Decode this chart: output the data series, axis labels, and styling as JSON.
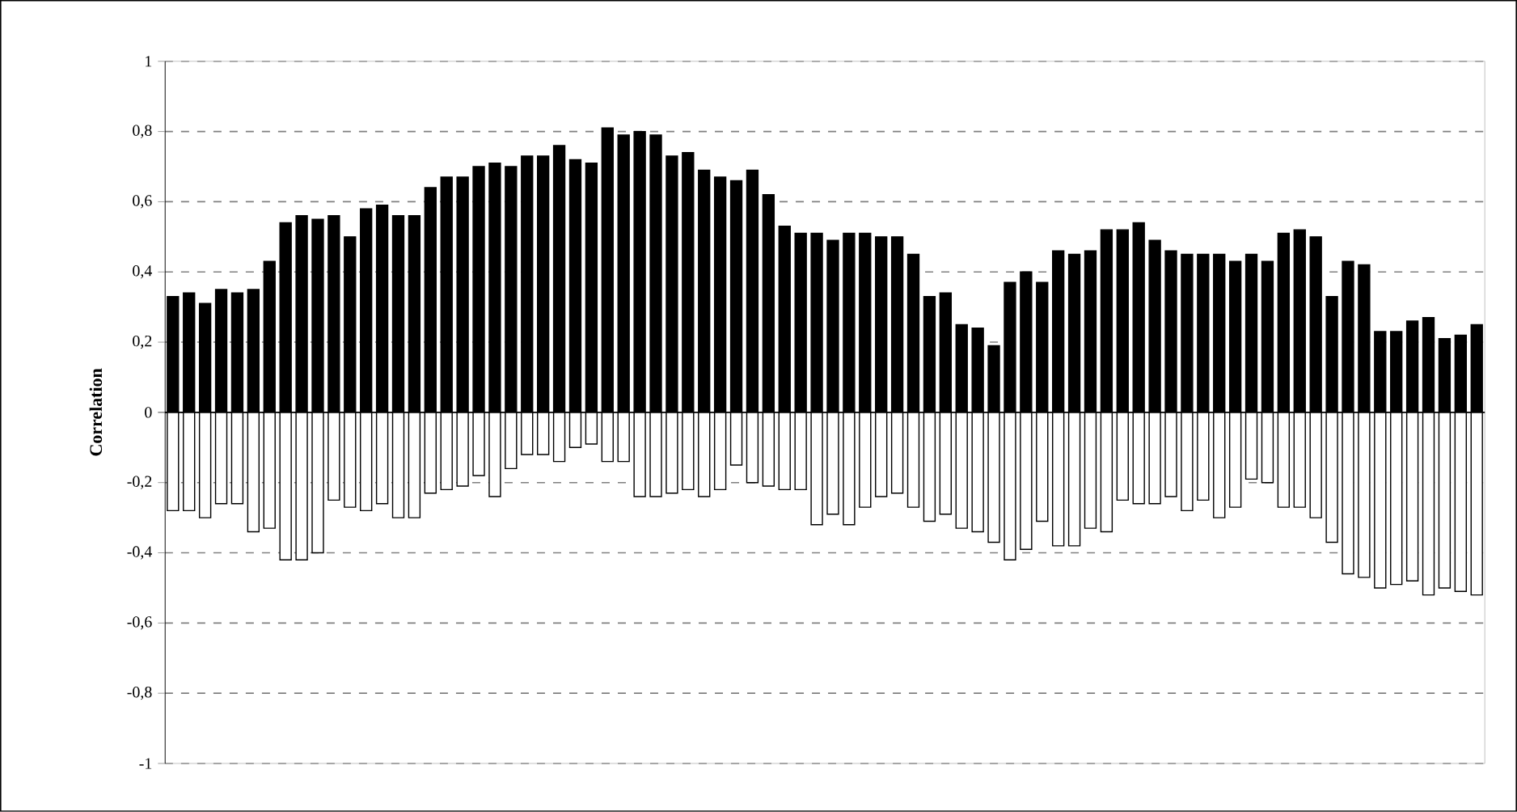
{
  "chart_data": {
    "type": "bar",
    "ylabel": "Correlation",
    "categories": [
      null,
      null,
      null,
      null,
      null,
      null,
      null,
      null,
      null,
      null,
      null,
      null,
      null,
      null,
      null,
      null,
      null,
      null,
      null,
      null,
      null,
      null,
      null,
      null,
      null,
      null,
      null,
      null,
      null,
      null,
      null,
      null,
      null,
      null,
      null,
      null,
      null,
      null,
      null,
      null,
      null,
      null,
      null,
      null,
      null,
      null,
      null,
      null,
      null,
      null,
      null,
      null,
      null,
      null,
      null,
      null,
      null,
      null,
      null,
      null,
      null,
      null,
      null,
      null,
      null,
      null,
      null,
      null,
      null,
      null,
      null,
      null,
      null,
      null,
      null,
      null,
      null,
      null,
      null,
      null,
      null,
      null
    ],
    "series": [
      {
        "color": "#000000",
        "values": [
          0.33,
          0.34,
          0.31,
          0.35,
          0.34,
          0.35,
          0.43,
          0.54,
          0.56,
          0.55,
          0.56,
          0.5,
          0.58,
          0.59,
          0.56,
          0.56,
          0.64,
          0.67,
          0.67,
          0.7,
          0.71,
          0.7,
          0.73,
          0.73,
          0.76,
          0.72,
          0.71,
          0.81,
          0.79,
          0.8,
          0.79,
          0.73,
          0.74,
          0.69,
          0.67,
          0.66,
          0.69,
          0.62,
          0.53,
          0.51,
          0.51,
          0.49,
          0.51,
          0.51,
          0.5,
          0.5,
          0.45,
          0.33,
          0.34,
          0.25,
          0.24,
          0.19,
          0.37,
          0.4,
          0.37,
          0.46,
          0.45,
          0.46,
          0.52,
          0.52,
          0.54,
          0.49,
          0.46,
          0.45,
          0.45,
          0.45,
          0.43,
          0.45,
          0.43,
          0.51,
          0.52,
          0.5,
          0.33,
          0.43,
          0.42,
          0.23,
          0.23,
          0.26,
          0.27,
          0.21,
          0.22,
          0.25
        ]
      },
      {
        "color": "#ffffff",
        "values": [
          -0.28,
          -0.28,
          -0.3,
          -0.26,
          -0.26,
          -0.34,
          -0.33,
          -0.42,
          -0.42,
          -0.4,
          -0.25,
          -0.27,
          -0.28,
          -0.26,
          -0.3,
          -0.3,
          -0.23,
          -0.22,
          -0.21,
          -0.18,
          -0.24,
          -0.16,
          -0.12,
          -0.12,
          -0.14,
          -0.1,
          -0.09,
          -0.14,
          -0.14,
          -0.24,
          -0.24,
          -0.23,
          -0.22,
          -0.24,
          -0.22,
          -0.15,
          -0.2,
          -0.21,
          -0.22,
          -0.22,
          -0.32,
          -0.29,
          -0.32,
          -0.27,
          -0.24,
          -0.23,
          -0.27,
          -0.31,
          -0.29,
          -0.33,
          -0.34,
          -0.37,
          -0.42,
          -0.39,
          -0.31,
          -0.38,
          -0.38,
          -0.33,
          -0.34,
          -0.25,
          -0.26,
          -0.26,
          -0.24,
          -0.28,
          -0.25,
          -0.3,
          -0.27,
          -0.19,
          -0.2,
          -0.27,
          -0.27,
          -0.3,
          -0.37,
          -0.46,
          -0.47,
          -0.5,
          -0.49,
          -0.48,
          -0.52,
          -0.5,
          -0.51,
          -0.52
        ]
      }
    ],
    "ylim": [
      -1,
      1
    ],
    "yticks": [
      {
        "value": -1,
        "label": "-1"
      },
      {
        "value": -0.8,
        "label": "-0,8"
      },
      {
        "value": -0.6,
        "label": "-0,6"
      },
      {
        "value": -0.4,
        "label": "-0,4"
      },
      {
        "value": -0.2,
        "label": "-0,2"
      },
      {
        "value": 0,
        "label": "0"
      },
      {
        "value": 0.2,
        "label": "0,2"
      },
      {
        "value": 0.4,
        "label": "0,4"
      },
      {
        "value": 0.6,
        "label": "0,6"
      },
      {
        "value": 0.8,
        "label": "0,8"
      },
      {
        "value": 1,
        "label": "1"
      }
    ],
    "grid": "y",
    "stacked": true
  }
}
